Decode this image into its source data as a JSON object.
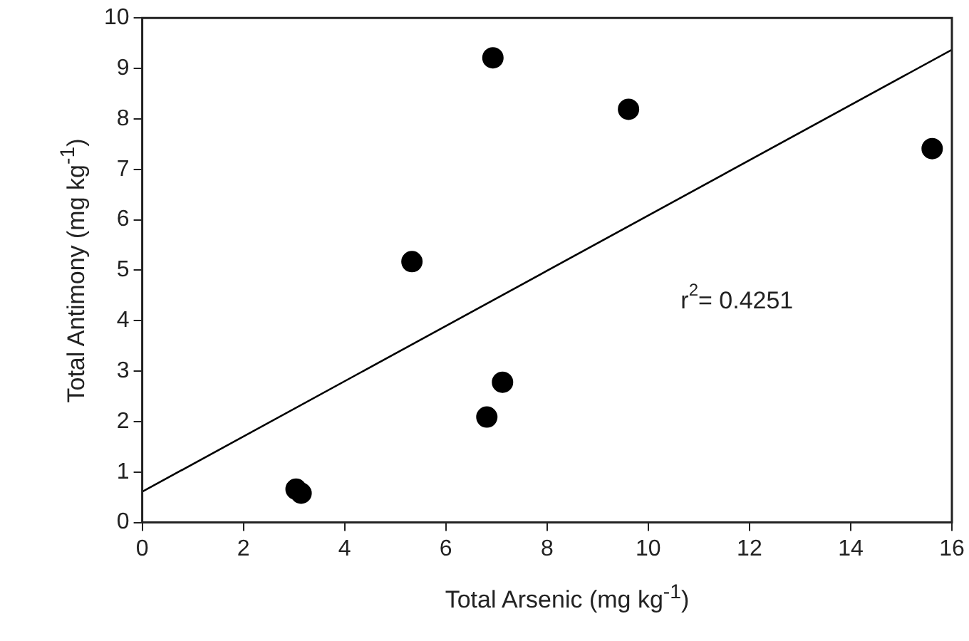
{
  "chart_data": {
    "type": "scatter",
    "xlabel": "Total Arsenic (mg kg$^{-1}$)",
    "ylabel": "Total Antimony (mg kg$^{-1}$)",
    "x": [
      3.04,
      3.14,
      5.33,
      6.81,
      7.12,
      6.93,
      9.61,
      15.61
    ],
    "series": [
      {
        "color": "#000000",
        "values": [
          0.66,
          0.58,
          5.17,
          2.09,
          2.78,
          9.21,
          8.19,
          7.41
        ]
      },
      {
        "type": "line",
        "marker": "none",
        "color": "#000000",
        "x": [
          0,
          16
        ],
        "values": [
          0.61,
          9.37
        ]
      }
    ],
    "marker": "circle",
    "xlim": [
      0,
      16
    ],
    "ylim": [
      0,
      10
    ],
    "xticks": [
      0,
      2,
      4,
      6,
      8,
      10,
      12,
      14,
      16
    ],
    "yticks": [
      0,
      1,
      2,
      3,
      4,
      5,
      6,
      7,
      8,
      9,
      10
    ],
    "grid": false,
    "legend": false,
    "annotations": [
      "r$^{2}$= 0.4251"
    ]
  }
}
